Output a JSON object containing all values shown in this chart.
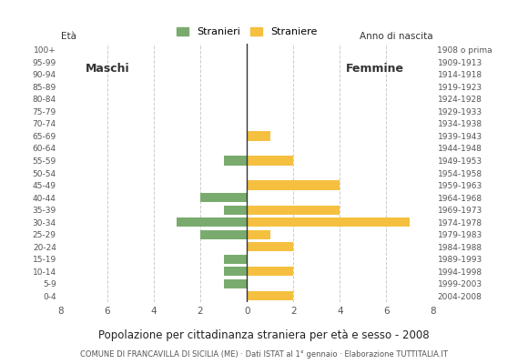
{
  "age_groups": [
    "0-4",
    "5-9",
    "10-14",
    "15-19",
    "20-24",
    "25-29",
    "30-34",
    "35-39",
    "40-44",
    "45-49",
    "50-54",
    "55-59",
    "60-64",
    "65-69",
    "70-74",
    "75-79",
    "80-84",
    "85-89",
    "90-94",
    "95-99",
    "100+"
  ],
  "birth_years": [
    "2004-2008",
    "1999-2003",
    "1994-1998",
    "1989-1993",
    "1984-1988",
    "1979-1983",
    "1974-1978",
    "1969-1973",
    "1964-1968",
    "1959-1963",
    "1954-1958",
    "1949-1953",
    "1944-1948",
    "1939-1943",
    "1934-1938",
    "1929-1933",
    "1924-1928",
    "1919-1923",
    "1914-1918",
    "1909-1913",
    "1908 o prima"
  ],
  "males": [
    0,
    1,
    1,
    1,
    0,
    2,
    3,
    1,
    2,
    0,
    0,
    1,
    0,
    0,
    0,
    0,
    0,
    0,
    0,
    0,
    0
  ],
  "females": [
    2,
    0,
    2,
    0,
    2,
    1,
    7,
    4,
    0,
    4,
    0,
    2,
    0,
    1,
    0,
    0,
    0,
    0,
    0,
    0,
    0
  ],
  "male_color": "#7aab6e",
  "female_color": "#f5c040",
  "title": "Popolazione per cittadinanza straniera per età e sesso - 2008",
  "subtitle": "COMUNE DI FRANCAVILLA DI SICILIA (ME) · Dati ISTAT al 1° gennaio · Elaborazione TUTTITALIA.IT",
  "eta_label": "Età",
  "label_maschi": "Maschi",
  "label_femmine": "Femmine",
  "legend_stranieri": "Stranieri",
  "legend_straniere": "Straniere",
  "anno_nascita_label": "Anno di nascita",
  "xlim": 8,
  "background_color": "#ffffff",
  "grid_color": "#cccccc"
}
